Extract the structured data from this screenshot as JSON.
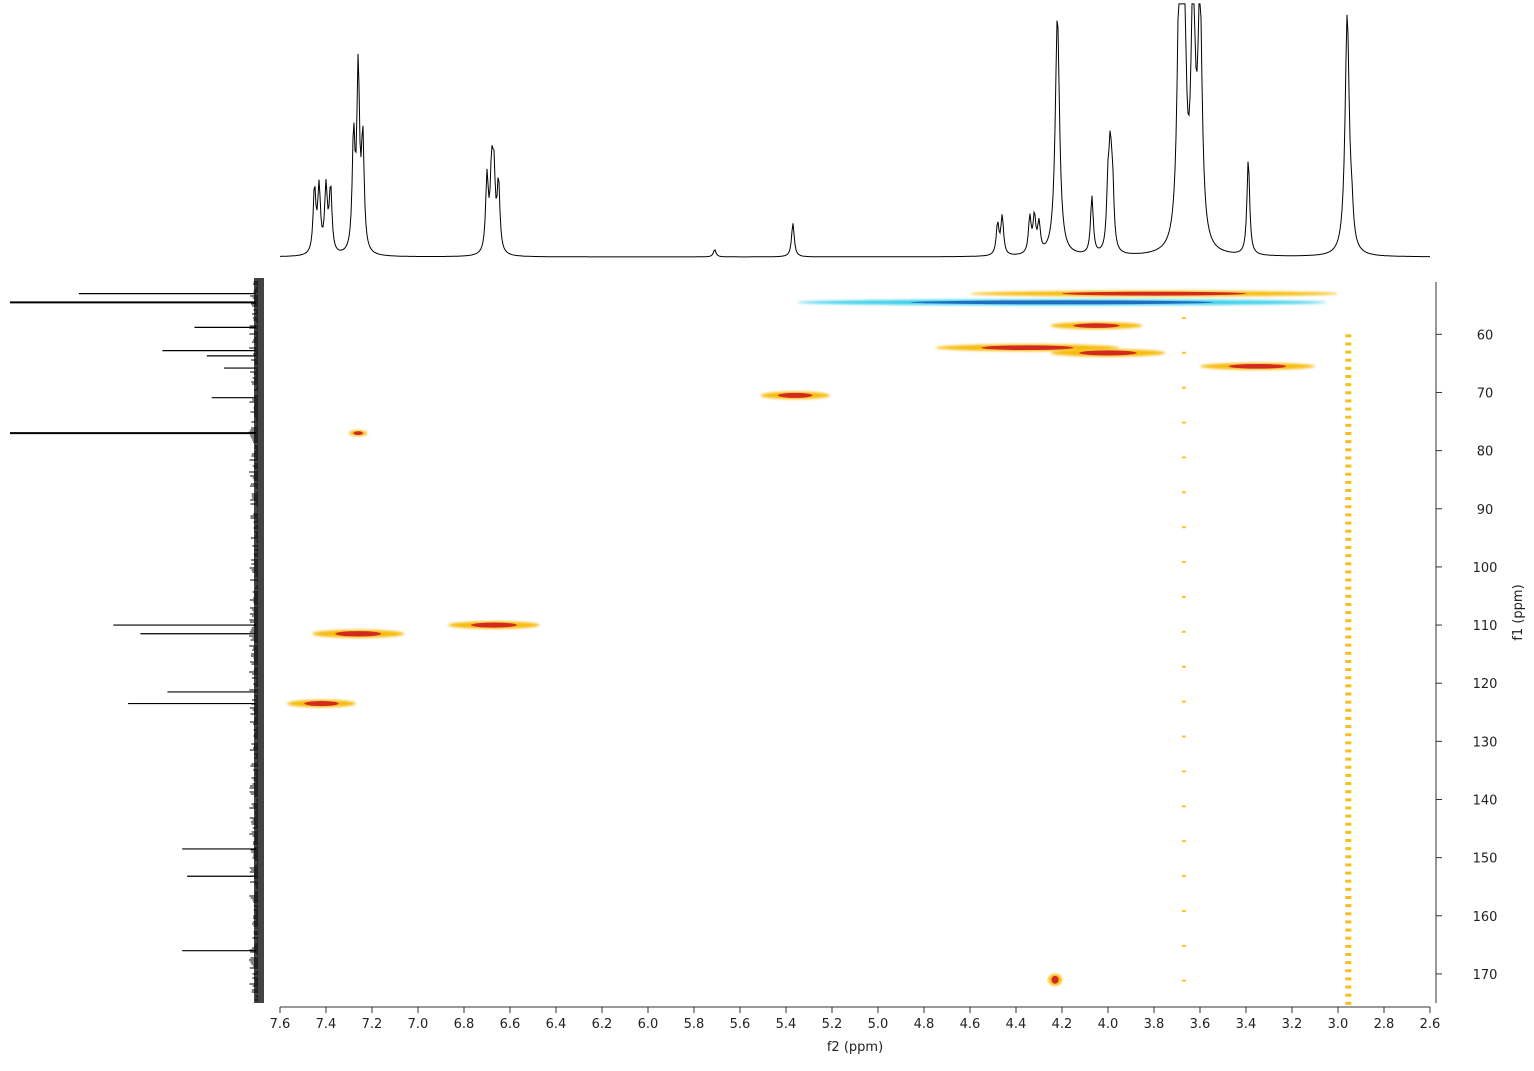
{
  "chart_data": {
    "type": "heatmap",
    "subtype": "2D NMR (HSQC) with projections",
    "x_axis": {
      "label": "f2 (ppm)",
      "range": [
        7.6,
        2.6
      ],
      "reversed": true,
      "ticks": [
        7.6,
        7.4,
        7.2,
        7.0,
        6.8,
        6.6,
        6.4,
        6.2,
        6.0,
        5.8,
        5.6,
        5.4,
        5.2,
        5.0,
        4.8,
        4.6,
        4.4,
        4.2,
        4.0,
        3.8,
        3.6,
        3.4,
        3.2,
        3.0,
        2.8,
        2.6
      ],
      "tick_labels": [
        "7.6",
        "7.4",
        "7.2",
        "7.0",
        "6.8",
        "6.6",
        "6.4",
        "6.2",
        "6.0",
        "5.8",
        "5.6",
        "5.4",
        "5.2",
        "5.0",
        "4.8",
        "4.6",
        "4.4",
        "4.2",
        "4.0",
        "3.8",
        "3.6",
        "3.4",
        "3.2",
        "3.0",
        "2.8",
        "2.6"
      ]
    },
    "y_axis": {
      "label": "f1 (ppm)",
      "range": [
        51,
        175
      ],
      "reversed": true,
      "position": "right",
      "ticks": [
        60,
        70,
        80,
        90,
        100,
        110,
        120,
        130,
        140,
        150,
        160,
        170
      ],
      "tick_labels": [
        "60",
        "70",
        "80",
        "90",
        "100",
        "110",
        "120",
        "130",
        "140",
        "150",
        "160",
        "170"
      ]
    },
    "colors": {
      "positive_core": "#d42a1e",
      "positive": "#f5b800",
      "negative_core": "#1e6fc2",
      "negative": "#2ecbe8"
    },
    "top_projection_1H": {
      "peaks": [
        {
          "ppm": 7.45,
          "height": 0.27
        },
        {
          "ppm": 7.43,
          "height": 0.27
        },
        {
          "ppm": 7.4,
          "height": 0.27
        },
        {
          "ppm": 7.38,
          "height": 0.27
        },
        {
          "ppm": 7.28,
          "height": 0.47
        },
        {
          "ppm": 7.26,
          "height": 0.75
        },
        {
          "ppm": 7.24,
          "height": 0.46
        },
        {
          "ppm": 6.7,
          "height": 0.31
        },
        {
          "ppm": 6.68,
          "height": 0.31
        },
        {
          "ppm": 6.67,
          "height": 0.3
        },
        {
          "ppm": 6.65,
          "height": 0.29
        },
        {
          "ppm": 5.71,
          "height": 0.03
        },
        {
          "ppm": 5.37,
          "height": 0.14
        },
        {
          "ppm": 4.48,
          "height": 0.13
        },
        {
          "ppm": 4.46,
          "height": 0.16
        },
        {
          "ppm": 4.34,
          "height": 0.15
        },
        {
          "ppm": 4.32,
          "height": 0.15
        },
        {
          "ppm": 4.3,
          "height": 0.12
        },
        {
          "ppm": 4.22,
          "height": 1.0
        },
        {
          "ppm": 4.07,
          "height": 0.24
        },
        {
          "ppm": 4.0,
          "height": 0.25
        },
        {
          "ppm": 3.99,
          "height": 0.36
        },
        {
          "ppm": 3.98,
          "height": 0.25
        },
        {
          "ppm": 3.69,
          "height": 1.0
        },
        {
          "ppm": 3.67,
          "height": 1.0
        },
        {
          "ppm": 3.63,
          "height": 1.0
        },
        {
          "ppm": 3.6,
          "height": 1.0
        },
        {
          "ppm": 3.39,
          "height": 0.4
        },
        {
          "ppm": 2.96,
          "height": 1.0
        },
        {
          "ppm": 2.94,
          "height": 0.1
        }
      ]
    },
    "left_projection_13C": {
      "peaks": [
        {
          "ppm": 53.0,
          "height": 0.72
        },
        {
          "ppm": 54.5,
          "height": 1.0
        },
        {
          "ppm": 58.8,
          "height": 0.25
        },
        {
          "ppm": 62.8,
          "height": 0.38
        },
        {
          "ppm": 63.7,
          "height": 0.2
        },
        {
          "ppm": 65.8,
          "height": 0.13
        },
        {
          "ppm": 70.9,
          "height": 0.18
        },
        {
          "ppm": 77.0,
          "height": 1.0
        },
        {
          "ppm": 110.0,
          "height": 0.58
        },
        {
          "ppm": 111.5,
          "height": 0.47
        },
        {
          "ppm": 121.5,
          "height": 0.36
        },
        {
          "ppm": 123.5,
          "height": 0.52
        },
        {
          "ppm": 148.5,
          "height": 0.3
        },
        {
          "ppm": 153.2,
          "height": 0.28
        },
        {
          "ppm": 166.0,
          "height": 0.3
        }
      ]
    },
    "cross_peaks": [
      {
        "f2": 3.8,
        "f1": 53.0,
        "w": 1.6,
        "h": 1.0,
        "sign": "positive"
      },
      {
        "f2": 4.2,
        "f1": 54.5,
        "w": 2.3,
        "h": 1.0,
        "sign": "negative"
      },
      {
        "f2": 4.05,
        "f1": 58.5,
        "w": 0.4,
        "h": 1.2,
        "sign": "positive"
      },
      {
        "f2": 4.35,
        "f1": 62.3,
        "w": 0.8,
        "h": 1.2,
        "sign": "positive"
      },
      {
        "f2": 4.0,
        "f1": 63.2,
        "w": 0.5,
        "h": 1.3,
        "sign": "positive"
      },
      {
        "f2": 3.35,
        "f1": 65.5,
        "w": 0.5,
        "h": 1.2,
        "sign": "positive"
      },
      {
        "f2": 5.36,
        "f1": 70.5,
        "w": 0.3,
        "h": 1.3,
        "sign": "positive"
      },
      {
        "f2": 7.26,
        "f1": 77.0,
        "w": 0.08,
        "h": 1.0,
        "sign": "positive"
      },
      {
        "f2": 6.67,
        "f1": 110.0,
        "w": 0.4,
        "h": 1.3,
        "sign": "positive"
      },
      {
        "f2": 7.26,
        "f1": 111.5,
        "w": 0.4,
        "h": 1.4,
        "sign": "positive"
      },
      {
        "f2": 7.42,
        "f1": 123.5,
        "w": 0.3,
        "h": 1.3,
        "sign": "positive"
      },
      {
        "f2": 4.23,
        "f1": 171.0,
        "w": 0.06,
        "h": 2.0,
        "sign": "positive"
      }
    ]
  }
}
